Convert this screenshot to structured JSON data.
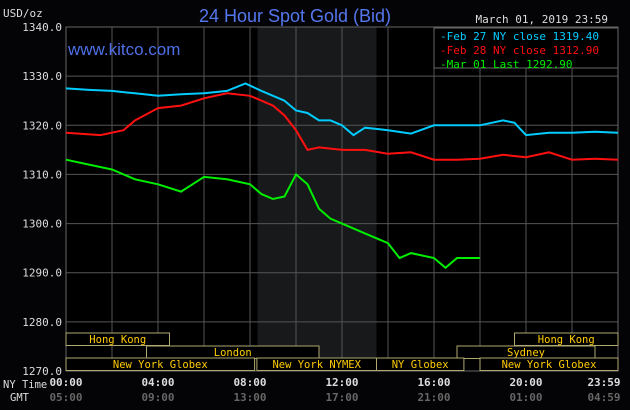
{
  "chart_data": {
    "type": "line",
    "title": "24 Hour Spot Gold (Bid)",
    "watermark": "www.kitco.com",
    "unit_label": "USD/oz",
    "timestamp": "March 01, 2019 23:59",
    "ylim": [
      1270,
      1340
    ],
    "yticks": [
      "1340.0",
      "1330.0",
      "1320.0",
      "1310.0",
      "1300.0",
      "1290.0",
      "1280.0",
      "1270.0"
    ],
    "xlim": [
      0,
      24
    ],
    "x_row_labels": [
      "NY Time",
      "GMT"
    ],
    "xticks_ny": [
      "00:00",
      "04:00",
      "08:00",
      "12:00",
      "16:00",
      "20:00",
      "23:59"
    ],
    "xticks_gmt": [
      "05:00",
      "09:00",
      "13:00",
      "17:00",
      "21:00",
      "01:00",
      "04:59"
    ],
    "grid": true,
    "legend_position": "top-right",
    "highlight_hours": [
      8.33,
      13.5
    ],
    "series": [
      {
        "name": "Feb 27 NY close 1319.40",
        "color": "#00ccff",
        "x": [
          0,
          1,
          2,
          3,
          4,
          5,
          6,
          7,
          7.8,
          8.5,
          9,
          9.5,
          10,
          10.5,
          11,
          11.5,
          12,
          12.5,
          13,
          14,
          15,
          16,
          17,
          18,
          19,
          19.5,
          20,
          21,
          22,
          23,
          24
        ],
        "y": [
          1327.5,
          1327.2,
          1327,
          1326.5,
          1326,
          1326.3,
          1326.5,
          1327,
          1328.5,
          1327,
          1326,
          1325,
          1323,
          1322.5,
          1321,
          1321,
          1320,
          1318,
          1319.5,
          1319,
          1318.3,
          1320,
          1320,
          1320,
          1321,
          1320.5,
          1318,
          1318.5,
          1318.5,
          1318.7,
          1318.5
        ]
      },
      {
        "name": "Feb 28 NY close 1312.90",
        "color": "#ff1010",
        "x": [
          0,
          1.5,
          2.5,
          3,
          4,
          5,
          6,
          7,
          8,
          8.5,
          9,
          9.5,
          10,
          10.5,
          11,
          12,
          13,
          14,
          15,
          16,
          17,
          18,
          19,
          20,
          21,
          22,
          23,
          24
        ],
        "y": [
          1318.5,
          1318,
          1319,
          1321,
          1323.5,
          1324,
          1325.5,
          1326.5,
          1326,
          1325,
          1324,
          1322,
          1319,
          1315,
          1315.5,
          1315,
          1315,
          1314.2,
          1314.5,
          1313,
          1313,
          1313.2,
          1314,
          1313.5,
          1314.5,
          1313,
          1313.2,
          1313
        ]
      },
      {
        "name": "Mar 01 Last 1292.90",
        "color": "#00ee00",
        "x": [
          0,
          1,
          2,
          3,
          4,
          5,
          5.5,
          6,
          7,
          8,
          8.5,
          9,
          9.5,
          10,
          10.5,
          11,
          11.5,
          12,
          13,
          14,
          14.5,
          15,
          16,
          16.5,
          17,
          18
        ],
        "y": [
          1313,
          1312,
          1311,
          1309,
          1308,
          1306.5,
          1308,
          1309.5,
          1309,
          1308,
          1306,
          1305,
          1305.5,
          1310,
          1308,
          1303,
          1301,
          1300,
          1298,
          1296,
          1293,
          1294,
          1293,
          1291,
          1293,
          1293
        ]
      }
    ],
    "sessions": [
      {
        "label": "Hong Kong",
        "row": 0,
        "start": 0,
        "end": 4.5
      },
      {
        "label": "Hong Kong",
        "row": 0,
        "start": 19.5,
        "end": 24
      },
      {
        "label": "London",
        "row": 1,
        "start": 3.5,
        "end": 11
      },
      {
        "label": "Sydney",
        "row": 1,
        "start": 17,
        "end": 23
      },
      {
        "label": "New York Globex",
        "row": 2,
        "start": 0,
        "end": 8.2
      },
      {
        "label": "New York NYMEX",
        "row": 2,
        "start": 8.3,
        "end": 13.5
      },
      {
        "label": "NY Globex",
        "row": 2,
        "start": 13.5,
        "end": 17.3
      },
      {
        "label": "New York Globex",
        "row": 2,
        "start": 18,
        "end": 24
      }
    ]
  }
}
